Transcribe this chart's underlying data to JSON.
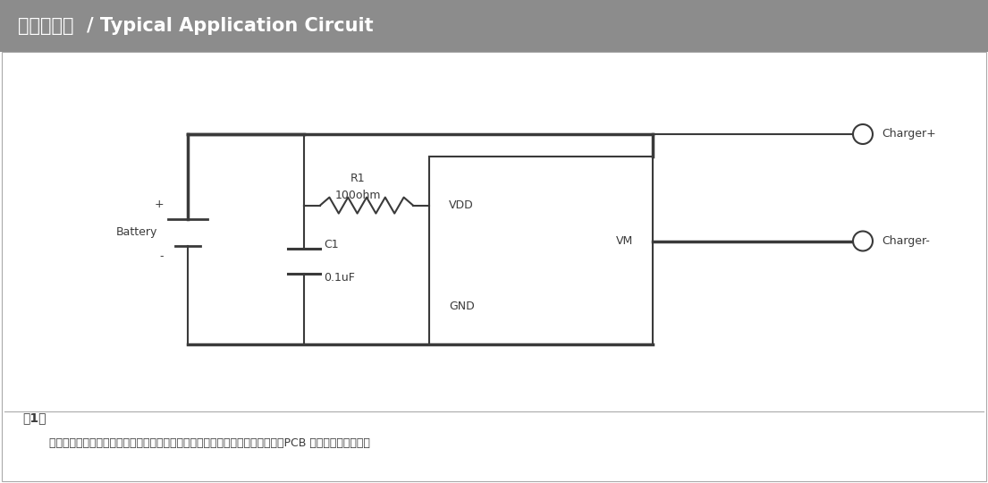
{
  "title": "典型应用图  / Typical Application Circuit",
  "title_bg": "#8c8c8c",
  "title_color": "#ffffff",
  "bg_color": "#ffffff",
  "line_color": "#3a3a3a",
  "note_bold": "注1：",
  "note_text": "粗线部分走线表示过大电流回路：为了保证良好的散热、满足过大电流的能力，PCB 走线尽可能短而宽。",
  "R1_label": "R1",
  "R1_val": "100ohm",
  "C1_label": "C1",
  "C1_val": "0.1uF",
  "Battery_label": "Battery",
  "VDD_label": "VDD",
  "GND_label": "GND",
  "VM_label": "VM",
  "ChgPlus_label": "Charger+",
  "ChgMinus_label": "Charger-",
  "figwidth": 11.05,
  "figheight": 5.4,
  "dpi": 100
}
